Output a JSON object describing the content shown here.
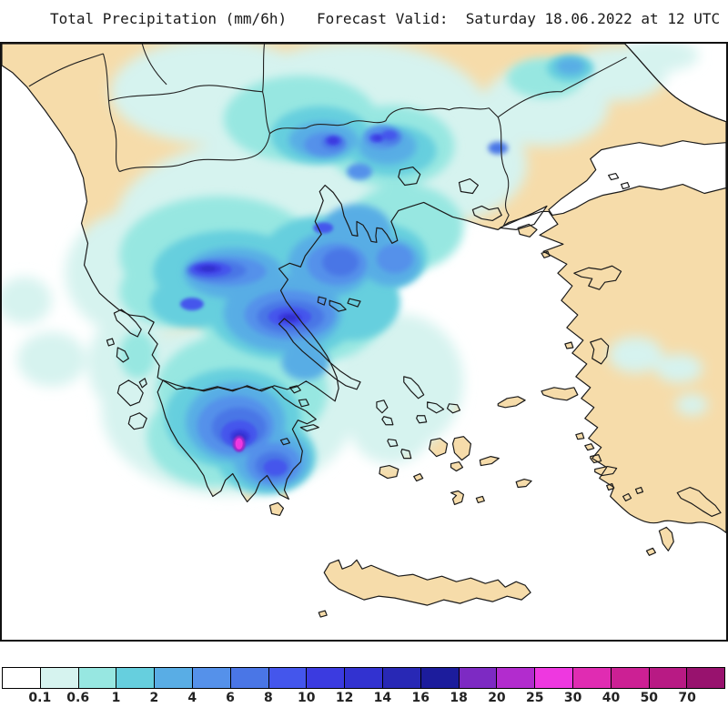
{
  "header": {
    "left_title": "Total Precipitation (mm/6h)",
    "right_title": "Forecast Valid:  Saturday 18.06.2022 at 12 UTC"
  },
  "legend": {
    "unit": "mm/6h",
    "boundary_labels": [
      "0.1",
      "0.6",
      "1",
      "2",
      "4",
      "6",
      "8",
      "10",
      "12",
      "14",
      "16",
      "18",
      "20",
      "25",
      "30",
      "40",
      "50",
      "70"
    ],
    "cell_colors": [
      "#ffffff",
      "#d6f3ef",
      "#97e7e1",
      "#66cfde",
      "#59ade5",
      "#5591ea",
      "#4a76e6",
      "#4456ec",
      "#3b3be0",
      "#3232d0",
      "#2828b5",
      "#1c1c9c",
      "#7d2ac3",
      "#b22cce",
      "#ee38e0",
      "#e02cb2",
      "#cc2094",
      "#b81a84",
      "#98126e"
    ]
  },
  "map": {
    "region": "Greece and the Aegean",
    "sea_color": "#ffffff",
    "land_color": "#f6dcaa",
    "coast_color": "#1a1a1a"
  },
  "chart_data": {
    "type": "heatmap",
    "title": "Total Precipitation (mm/6h)",
    "valid_time": "Saturday 18.06.2022 at 12 UTC",
    "scale_boundaries_mm_per_6h": [
      0.1,
      0.6,
      1,
      2,
      4,
      6,
      8,
      10,
      12,
      14,
      16,
      18,
      20,
      25,
      30,
      40,
      50,
      70
    ],
    "scale_colors": [
      "#ffffff",
      "#d6f3ef",
      "#97e7e1",
      "#66cfde",
      "#59ade5",
      "#5591ea",
      "#4a76e6",
      "#4456ec",
      "#3b3be0",
      "#3232d0",
      "#2828b5",
      "#1c1c9c",
      "#7d2ac3",
      "#b22cce",
      "#ee38e0",
      "#e02cb2",
      "#cc2094",
      "#b81a84",
      "#98126e"
    ],
    "notes": "Light rain (0.1-2 mm/6h) over Macedonia, Thrace and Bulgaria; moderate to heavy rain (4-14 mm/6h) over Epirus, central Greece, the Gulf of Corinth and the Peloponnese; isolated 25-30 mm/6h peak in the southern Peloponnese; dry over the Aegean islands, Crete and western Turkey."
  }
}
